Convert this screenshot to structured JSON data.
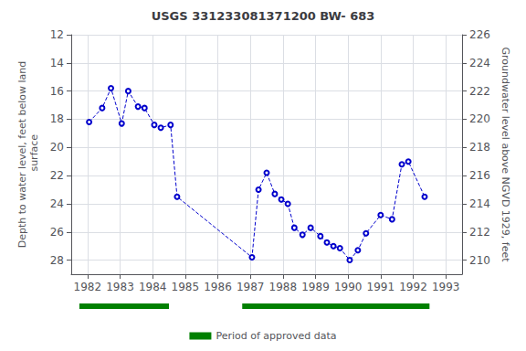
{
  "chart_data": {
    "type": "line",
    "title": "USGS 331233081371200 BW- 683",
    "ylabel": "Depth to water level, feet below land\n surface",
    "y2label": "Groundwater level above NGVD 1929, feet",
    "x": [
      1982.05,
      1982.45,
      1982.72,
      1983.05,
      1983.25,
      1983.55,
      1983.75,
      1984.05,
      1984.25,
      1984.55,
      1984.75,
      1987.05,
      1987.25,
      1987.5,
      1987.75,
      1987.95,
      1988.15,
      1988.35,
      1988.6,
      1988.85,
      1989.15,
      1989.35,
      1989.55,
      1989.75,
      1990.05,
      1990.3,
      1990.55,
      1991.0,
      1991.35,
      1991.65,
      1991.85,
      1992.35
    ],
    "series": [
      {
        "color": "#0000CC",
        "marker": "circle",
        "line_style": "dashed",
        "values": [
          18.2,
          17.2,
          15.8,
          18.3,
          16.0,
          17.1,
          17.2,
          18.4,
          18.6,
          18.4,
          23.5,
          27.8,
          23.0,
          21.8,
          23.3,
          23.7,
          24.0,
          25.7,
          26.2,
          25.7,
          26.3,
          26.75,
          27.0,
          27.15,
          28.0,
          27.3,
          26.1,
          24.8,
          25.1,
          21.2,
          21.0,
          23.5
        ]
      }
    ],
    "xlim": [
      1981.5,
      1993.5
    ],
    "xticks": [
      1982,
      1983,
      1984,
      1985,
      1986,
      1987,
      1988,
      1989,
      1990,
      1991,
      1992,
      1993
    ],
    "ylim": [
      29.0,
      12
    ],
    "yticks": [
      12,
      14,
      16,
      18,
      20,
      22,
      24,
      26,
      28
    ],
    "y2lim": [
      209,
      226
    ],
    "y2ticks": [
      210,
      212,
      214,
      216,
      218,
      220,
      222,
      224,
      226
    ],
    "periods": {
      "name": "Period of approved data",
      "color": "#008000",
      "ranges": [
        [
          1981.75,
          1984.5
        ],
        [
          1986.75,
          1992.5
        ]
      ]
    },
    "grid": true,
    "legend": "bottom"
  }
}
